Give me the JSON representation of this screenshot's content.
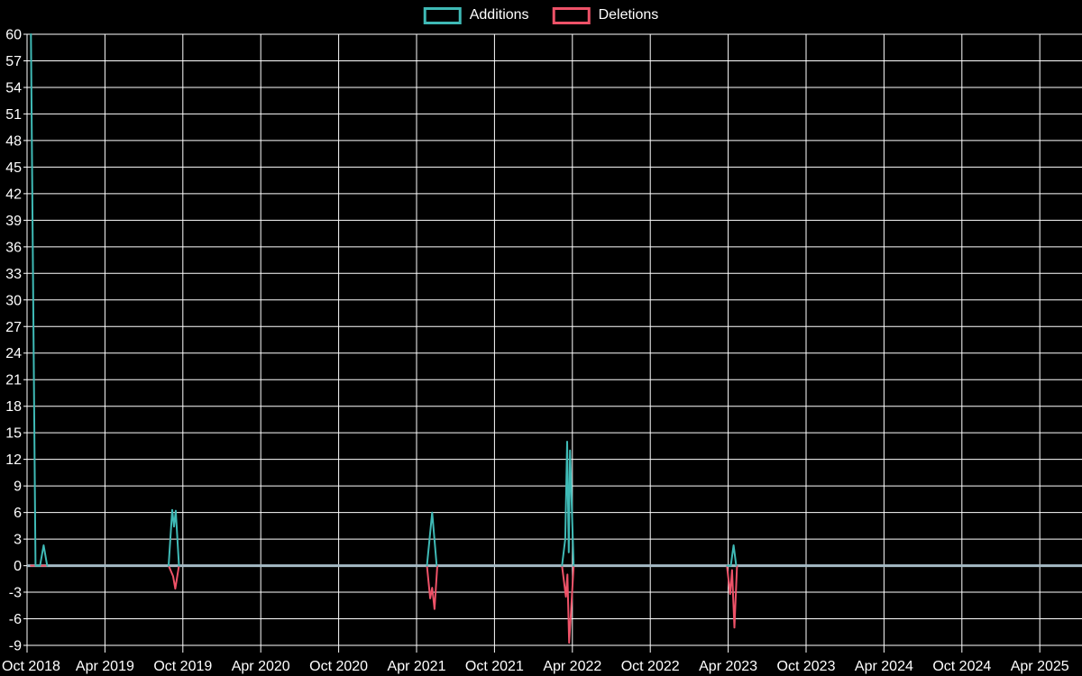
{
  "chart_data": {
    "type": "line",
    "title": "",
    "legend_position": "top-center",
    "background_color": "#000000",
    "grid_color": "#ffffff",
    "text_color": "#ffffff",
    "zero_line_color": "#a5bac4",
    "axis_color": "#ffffff",
    "ylim": [
      -9,
      60
    ],
    "y_tick_step": 3,
    "y_ticks": [
      60,
      57,
      54,
      51,
      48,
      45,
      42,
      39,
      36,
      33,
      30,
      27,
      24,
      21,
      18,
      15,
      12,
      9,
      6,
      3,
      0,
      -3,
      -6,
      -9
    ],
    "x_ticks": [
      "Oct 2018",
      "Apr 2019",
      "Oct 2019",
      "Apr 2020",
      "Oct 2020",
      "Apr 2021",
      "Oct 2021",
      "Apr 2022",
      "Oct 2022",
      "Apr 2023",
      "Oct 2023",
      "Apr 2024",
      "Oct 2024",
      "Apr 2025"
    ],
    "x_tick_interval_months": 6,
    "x_unit": "months_since_Oct_2018",
    "x_range_months": [
      0,
      81.25
    ],
    "grid": true,
    "series": [
      {
        "name": "Additions",
        "color": "#3fbab6",
        "segments": [
          [
            [
              0.3,
              60
            ],
            [
              0.65,
              0
            ],
            [
              1.0,
              0
            ],
            [
              1.28,
              2.3
            ],
            [
              1.55,
              0
            ]
          ],
          [
            [
              10.9,
              0
            ],
            [
              11.18,
              6.3
            ],
            [
              11.32,
              4.4
            ],
            [
              11.45,
              6.2
            ],
            [
              11.7,
              0
            ]
          ],
          [
            [
              30.8,
              0
            ],
            [
              31.2,
              6
            ],
            [
              31.55,
              0
            ]
          ],
          [
            [
              41.2,
              0
            ],
            [
              41.45,
              3
            ],
            [
              41.6,
              14
            ],
            [
              41.72,
              1.5
            ],
            [
              41.82,
              13
            ],
            [
              42.1,
              0
            ]
          ],
          [
            [
              53.9,
              0
            ],
            [
              54.2,
              0
            ],
            [
              54.42,
              2.3
            ],
            [
              54.62,
              0
            ]
          ]
        ]
      },
      {
        "name": "Deletions",
        "color": "#ee5268",
        "segments": [
          [
            [
              0.3,
              0
            ],
            [
              1.5,
              0
            ]
          ],
          [
            [
              10.9,
              0
            ],
            [
              11.25,
              -1.2
            ],
            [
              11.42,
              -2.6
            ],
            [
              11.7,
              0
            ]
          ],
          [
            [
              30.8,
              0
            ],
            [
              31.05,
              -3.7
            ],
            [
              31.2,
              -2.5
            ],
            [
              31.38,
              -4.9
            ],
            [
              31.6,
              0
            ]
          ],
          [
            [
              41.2,
              0
            ],
            [
              41.5,
              -3.5
            ],
            [
              41.62,
              -1
            ],
            [
              41.75,
              -8.7
            ],
            [
              41.9,
              -5
            ],
            [
              42.1,
              0
            ]
          ],
          [
            [
              53.9,
              0
            ],
            [
              54.15,
              -3.2
            ],
            [
              54.3,
              -0.5
            ],
            [
              54.48,
              -7
            ],
            [
              54.68,
              0
            ]
          ]
        ]
      }
    ]
  }
}
